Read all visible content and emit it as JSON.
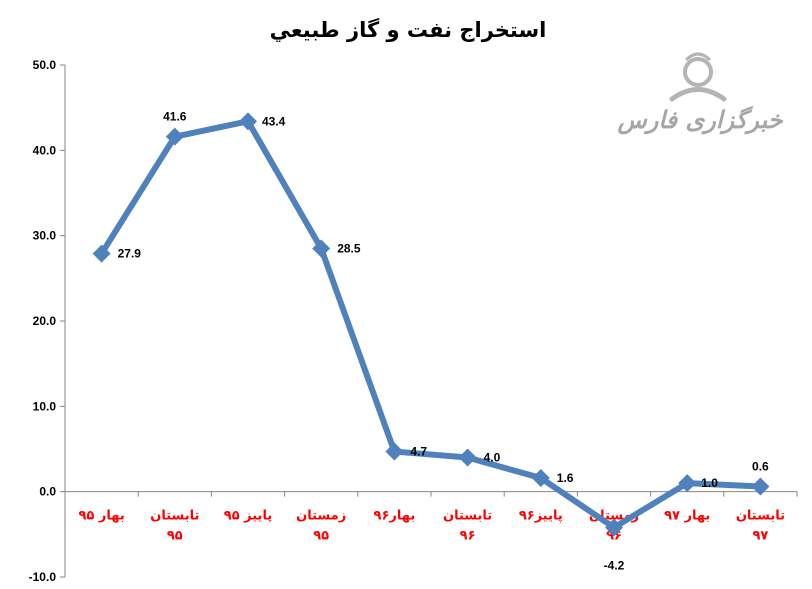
{
  "chart_data": {
    "type": "line",
    "title": "استخراج نفت و گاز طبيعي",
    "categories": [
      [
        "بهار ۹۵"
      ],
      [
        "تابستان",
        "۹۵"
      ],
      [
        "پاییز ۹۵"
      ],
      [
        "زمستان",
        "۹۵"
      ],
      [
        "بهار۹۶"
      ],
      [
        "تابستان",
        "۹۶"
      ],
      [
        "پاییز۹۶"
      ],
      [
        "زمستان",
        "۹۶"
      ],
      [
        "بهار ۹۷"
      ],
      [
        "تابستان",
        "۹۷"
      ]
    ],
    "series": [
      {
        "values": [
          27.9,
          41.6,
          43.4,
          28.5,
          4.7,
          4.0,
          1.6,
          -4.2,
          1.0,
          0.6
        ],
        "data_labels": [
          "27.9",
          "41.6",
          "43.4",
          "28.5",
          "4.7",
          "4.0",
          "1.6",
          "-4.2",
          "1.0",
          "0.6"
        ]
      }
    ],
    "ylim": [
      -10,
      50
    ],
    "y_ticks": [
      "50.0",
      "40.0",
      "30.0",
      "20.0",
      "10.0",
      "0.0",
      "-10.0"
    ],
    "grid": false,
    "legend": "none",
    "colors": {
      "line": "#4F81BD",
      "category_labels": "#FF0000",
      "axis": "#868686",
      "title": "#000000"
    }
  },
  "watermark": {
    "text": "خبرگزاری فارس",
    "icon": "fars-news-logo-icon",
    "color": "#A6A6A6"
  }
}
